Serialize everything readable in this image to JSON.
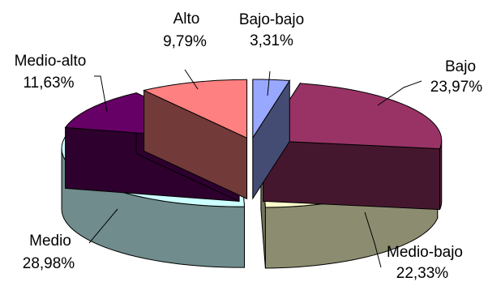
{
  "chart_data": {
    "type": "pie",
    "style": "3d-exploded",
    "title": "",
    "legend": "none",
    "slices": [
      {
        "label": "Bajo-bajo",
        "value": 3.31,
        "value_label": "3,31%",
        "color": "#99A8FF"
      },
      {
        "label": "Bajo",
        "value": 23.97,
        "value_label": "23,97%",
        "color": "#993366"
      },
      {
        "label": "Medio-bajo",
        "value": 22.33,
        "value_label": "22,33%",
        "color": "#FFFFCC"
      },
      {
        "label": "Medio",
        "value": 28.98,
        "value_label": "28,98%",
        "color": "#CCFFFF"
      },
      {
        "label": "Medio-alto",
        "value": 11.63,
        "value_label": "11,63%",
        "color": "#660066"
      },
      {
        "label": "Alto",
        "value": 9.79,
        "value_label": "9,79%",
        "color": "#FF8080"
      }
    ]
  }
}
